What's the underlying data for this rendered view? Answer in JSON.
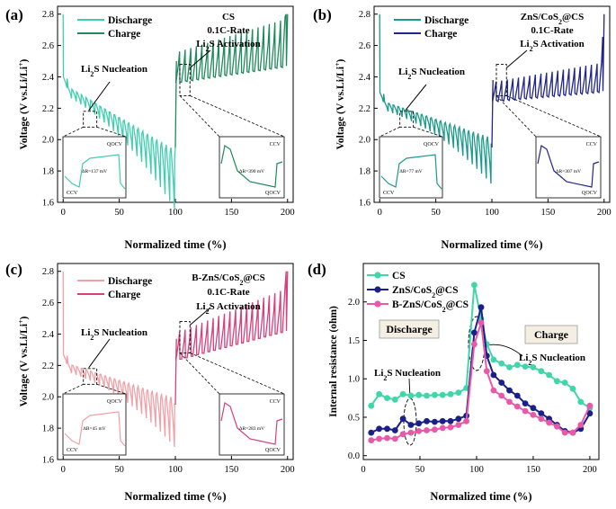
{
  "figure": {
    "caption_note": "Galvanostatic intermittent titration / internal resistance comparison"
  },
  "chart_data": [
    {
      "panel": "(a)",
      "type": "line",
      "title": "CS",
      "annotations": [
        "CS",
        "0.1C-Rate",
        "Li2S Activation",
        "Li2S Nucleation"
      ],
      "xlabel": "Normalized time (%)",
      "ylabel": "Voltage (V vs.Li/Li+)",
      "xlim": [
        -5,
        205
      ],
      "ylim": [
        1.6,
        2.85
      ],
      "xticks": [
        0,
        50,
        100,
        150,
        200
      ],
      "yticks": [
        1.6,
        1.8,
        2.0,
        2.2,
        2.4,
        2.6,
        2.8
      ],
      "series": [
        {
          "name": "Discharge",
          "color": "#3fcfae"
        },
        {
          "name": "Charge",
          "color": "#1f8a5c"
        }
      ],
      "params": {
        "dis_start": 2.35,
        "dis_end": 1.95,
        "dis_drop": 0.07,
        "dis_spike_end": 0.32,
        "chg_start": 2.4,
        "chg_end": 2.5,
        "chg_spike": 0.18,
        "final": 2.8
      },
      "insets": [
        {
          "labels": [
            "QOCV",
            "CCV",
            "ΔR=137 mV"
          ]
        },
        {
          "labels": [
            "CCV",
            "QOCV",
            "ΔR=390 mV"
          ]
        }
      ]
    },
    {
      "panel": "(b)",
      "type": "line",
      "title": "ZnS/CoS2@CS",
      "annotations": [
        "ZnS/CoS2@CS",
        "0.1C-Rate",
        "Li2S Activation",
        "Li2S Nucleation"
      ],
      "xlabel": "Normalized time (%)",
      "ylabel": "Voltage (V vs.Li/Li+)",
      "xlim": [
        -5,
        205
      ],
      "ylim": [
        1.6,
        2.85
      ],
      "xticks": [
        0,
        50,
        100,
        150,
        200
      ],
      "yticks": [
        1.6,
        1.8,
        2.0,
        2.2,
        2.4,
        2.6,
        2.8
      ],
      "series": [
        {
          "name": "Discharge",
          "color": "#1a9a8a"
        },
        {
          "name": "Charge",
          "color": "#22258a"
        }
      ],
      "params": {
        "dis_start": 2.25,
        "dis_end": 2.02,
        "dis_drop": 0.06,
        "dis_spike_end": 0.24,
        "chg_start": 2.28,
        "chg_end": 2.34,
        "chg_spike": 0.1,
        "final": 2.8
      },
      "insets": [
        {
          "labels": [
            "QOCV",
            "CCV",
            "ΔR=77 mV"
          ]
        },
        {
          "labels": [
            "CCV",
            "QOCV",
            "ΔR=307 mV"
          ]
        }
      ]
    },
    {
      "panel": "(c)",
      "type": "line",
      "title": "B-ZnS/CoS2@CS",
      "annotations": [
        "B-ZnS/CoS2@CS",
        "0.1C-Rate",
        "Li2S Activation",
        "Li2S Nucleation"
      ],
      "xlabel": "Normalized time (%)",
      "ylabel": "Voltage (V vs.Li/Li+)",
      "xlim": [
        -5,
        205
      ],
      "ylim": [
        1.6,
        2.85
      ],
      "xticks": [
        0,
        50,
        100,
        150,
        200
      ],
      "yticks": [
        1.6,
        1.8,
        2.0,
        2.2,
        2.4,
        2.6,
        2.8
      ],
      "series": [
        {
          "name": "Discharge",
          "color": "#f2a0a8"
        },
        {
          "name": "Charge",
          "color": "#d6407c"
        }
      ],
      "params": {
        "dis_start": 2.22,
        "dis_end": 2.0,
        "dis_drop": 0.06,
        "dis_spike_end": 0.26,
        "chg_start": 2.27,
        "chg_end": 2.45,
        "chg_spike": 0.16,
        "final": 2.8
      },
      "insets": [
        {
          "labels": [
            "QOCV",
            "CCV",
            "ΔR=45 mV"
          ]
        },
        {
          "labels": [
            "CCV",
            "QOCV",
            "ΔR=283 mV"
          ]
        }
      ]
    },
    {
      "panel": "(d)",
      "type": "line",
      "xlabel": "Normalized time (%)",
      "ylabel": "Internal resistance (ohm)",
      "xlim": [
        0,
        208
      ],
      "ylim": [
        -0.05,
        2.5
      ],
      "xticks": [
        0,
        50,
        100,
        150,
        200
      ],
      "yticks": [
        0.0,
        0.5,
        1.0,
        1.5,
        2.0
      ],
      "regions": [
        "Discharge",
        "Charge"
      ],
      "annotations": [
        "Li2S Nucleation",
        "Li2S Nucleation"
      ],
      "x": [
        7,
        14,
        21,
        28,
        35,
        42,
        49,
        56,
        63,
        70,
        77,
        84,
        91,
        98,
        104,
        109,
        115,
        122,
        129,
        136,
        143,
        150,
        157,
        164,
        171,
        178,
        185,
        192,
        200
      ],
      "series": [
        {
          "name": "CS",
          "color": "#3fd6a8",
          "values": [
            0.65,
            0.8,
            0.75,
            0.73,
            0.8,
            0.78,
            0.79,
            0.78,
            0.79,
            0.79,
            0.8,
            0.82,
            0.88,
            2.22,
            1.78,
            1.45,
            1.25,
            1.2,
            1.15,
            1.18,
            1.16,
            1.15,
            1.1,
            1.05,
            0.97,
            0.95,
            0.87,
            0.7,
            0.62
          ]
        },
        {
          "name": "ZnS/CoS2@CS",
          "color": "#1a1f8a",
          "values": [
            0.3,
            0.35,
            0.35,
            0.33,
            0.48,
            0.4,
            0.42,
            0.45,
            0.44,
            0.45,
            0.45,
            0.48,
            0.52,
            1.6,
            1.93,
            1.3,
            1.05,
            0.95,
            0.85,
            0.78,
            0.68,
            0.62,
            0.55,
            0.48,
            0.4,
            0.32,
            0.3,
            0.35,
            0.55
          ]
        },
        {
          "name": "B-ZnS/CoS2@CS",
          "color": "#e85aa8",
          "values": [
            0.2,
            0.22,
            0.23,
            0.22,
            0.28,
            0.3,
            0.32,
            0.33,
            0.34,
            0.36,
            0.37,
            0.4,
            0.45,
            1.45,
            1.73,
            1.1,
            0.85,
            0.78,
            0.7,
            0.64,
            0.58,
            0.53,
            0.48,
            0.43,
            0.38,
            0.3,
            0.3,
            0.4,
            0.65
          ]
        }
      ]
    }
  ],
  "panel_text": {
    "a": {
      "tag": "(a)",
      "xlabel": "Normalized time (%)",
      "legend": [
        "Discharge",
        "Charge"
      ],
      "t1": "CS",
      "t2": "0.1C-Rate",
      "act": "Li",
      "act_sub": "2",
      "act_rest": "S Activation",
      "nuc": "Li",
      "nuc_sub": "2",
      "nuc_rest": "S Nucleation"
    },
    "b": {
      "tag": "(b)",
      "xlabel": "Normalized time (%)",
      "legend": [
        "Discharge",
        "Charge"
      ],
      "t1a": "ZnS/CoS",
      "t1sub": "2",
      "t1b": "@CS",
      "t2": "0.1C-Rate",
      "act": "Li",
      "act_sub": "2",
      "act_rest": "S Activation",
      "nuc": "Li",
      "nuc_sub": "2",
      "nuc_rest": "S Nucleation"
    },
    "c": {
      "tag": "(c)",
      "xlabel": "Normalized time (%)",
      "legend": [
        "Discharge",
        "Charge"
      ],
      "t1a": "B-ZnS/CoS",
      "t1sub": "2",
      "t1b": "@CS",
      "t2": "0.1C-Rate",
      "act": "Li",
      "act_sub": "2",
      "act_rest": "S Activation",
      "nuc": "Li",
      "nuc_sub": "2",
      "nuc_rest": "S Nucleation"
    },
    "d": {
      "tag": "(d)",
      "xlabel": "Normalized time (%)",
      "ylabel": "Internal resistance (ohm)",
      "legend": [
        "CS",
        "ZnS/CoS",
        "@CS",
        "B-ZnS/CoS",
        "@CS"
      ],
      "legend_sub": "2",
      "reg1": "Discharge",
      "reg2": "Charge",
      "nuc": "Li",
      "nuc_sub": "2",
      "nuc_rest": "S Nucleation"
    },
    "ylabel_main": "Voltage (V vs.Li/Li",
    "ylabel_sup": "+",
    "ylabel_end": ")"
  }
}
